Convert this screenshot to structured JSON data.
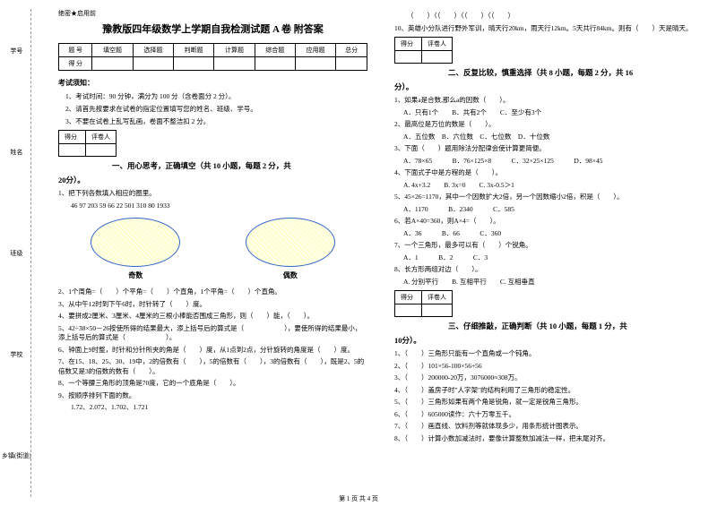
{
  "gutter": {
    "labels": [
      "学号",
      "姓名",
      "班级",
      "学校",
      "乡镇(街道)"
    ],
    "marks": [
      "题",
      "本",
      "内",
      "线",
      "封",
      "密"
    ]
  },
  "header_tag": "绝密★启用前",
  "title": "豫教版四年级数学上学期自我检测试题 A 卷 附答案",
  "score_table": {
    "headers": [
      "题 号",
      "填空题",
      "选择题",
      "判断题",
      "计算题",
      "综合题",
      "应用题",
      "总分"
    ],
    "row_label": "得 分"
  },
  "notice_title": "考试须知：",
  "notices": [
    "1、考试时间：90 分钟，满分为 100 分（含卷面分 2 分）。",
    "2、请首先按要求在试卷的指定位置填写您的姓名、班级、学号。",
    "3、不要在试卷上乱写乱画，卷面不整洁扣 2 分。"
  ],
  "parts": {
    "p1": {
      "score_row": [
        "得分",
        "评卷人"
      ],
      "heading": "一、用心思考，正确填空（共 10 小题，每题 2 分，共",
      "heading_tail": "20分）。",
      "q1": "1、把下列各数填入相应的圈里。",
      "q1_nums": "46  97  203  59  66  22  501  310  80  1933",
      "oval_labels": [
        "奇数",
        "偶数"
      ],
      "q2": "2、1个周角=（　　）个平角=（　　）个直角，1个平角=（　　）个直角。",
      "q3": "3、从中午12时到下午6时，时针转了（　　）度。",
      "q4": "4、要拼成2厘米、3厘米、4厘米的三根小棒能否围成三角形，则（　　）能，（　　）。",
      "q5": "5、42÷38×50－26按使所得的结果最大，添上括号后的算式是（　　　　　　），要使所得的结果最小，添上括号后的算式是（　　　　　　）。",
      "q6": "6、钟面上9时整，时针和分针所夹的角是（　　）度，从1点到2点，分针旋转的角度是（　　）度。",
      "q7": "7、在15、18、25、30、19中，2的倍数有（　　），5的倍数有（　　），3的倍数有（　　），既是2、5的倍数又是3的倍数的数有（　　）。",
      "q8": "8、一个等腰三角形的顶角是70度，它的一个底角是（　　）。",
      "q9": "9、按顺序排列下面的数。",
      "q9_sub": "1.72、2.072、1.702、1.721",
      "q10_head": "（　　）〈（　　）〈（　　）〈（　　）",
      "q10": "10、英雄小分队进行野外军训，晴天行20km，雨天行12km。5天共行84km。则有（　　）天是晴天。"
    },
    "p2": {
      "score_row": [
        "得分",
        "评卷人"
      ],
      "heading": "二、反复比较，慎重选择（共 8 小题，每题 2 分，共 16",
      "heading_tail": "分）。",
      "q1": "1、如果a是合数,那么a的因数（　　）。",
      "q1_opts": "A．只有1个　　B．共有2个　　C．至少有3个",
      "q2": "2、最高位是万位的数是（　　）。",
      "q2_opts": "A．五位数　B．六位数　C．七位数　D．十位数",
      "q3": "3、下面（　　）题用除法分配律会使计算更简便。",
      "q3_opts": "A．78×65　　　B．76×125×8　　　C．32×25×125　　　D．98×45",
      "q4": "4、下面式子中是方程的是（　　）。",
      "q4_opts": "A. 4x+3.2　　B. 3x=0　　C. 3x-0.5＞1",
      "q5": "5、45×26=1170，其中一个因数扩大2倍，另一个因数缩小2倍，积是（　　）。",
      "q5_opts": "A．1170　　　B．2340　　　C．585",
      "q6": "6、若A×40=360，则A×4=（　　）。",
      "q6_opts": "A．36　　　B．66　　　C．360",
      "q7": "7、一个三角形，最多可以有（　　）个锐角。",
      "q7_opts": "A．1　　　B．2　　　C．3",
      "q8": "8、长方形两组对边（　　）。",
      "q8_opts": "A. 分别平行　　B. 互相平行　　C. 互相垂直"
    },
    "p3": {
      "score_row": [
        "得分",
        "评卷人"
      ],
      "heading": "三、仔细推敲，正确判断（共 10 小题，每题 1 分，共",
      "heading_tail": "10分）。",
      "q1": "1、（　　）三角形只能有一个直角或一个钝角。",
      "q2": "2、（　　）101×56-100×56+56",
      "q3": "3、（　　）200000-20万，3076000≈308万。",
      "q4": "4、（　　）盖房子时\"人字架\"的结构利用了三角形的稳定性。",
      "q5": "5、（　　）三角形如果有两个角是锐角，就一定是锐角三角形。",
      "q6": "6、（　　）605000读作：六十万零五千。",
      "q7": "7、（　　）画直线、饮料剂等就体现多少，用条形统计图表示。",
      "q8": "8、（　　）计算小数加减法时，要像计算整数加减法一样，把末尾对齐。"
    }
  },
  "footer": "第 1 页 共 4 页"
}
